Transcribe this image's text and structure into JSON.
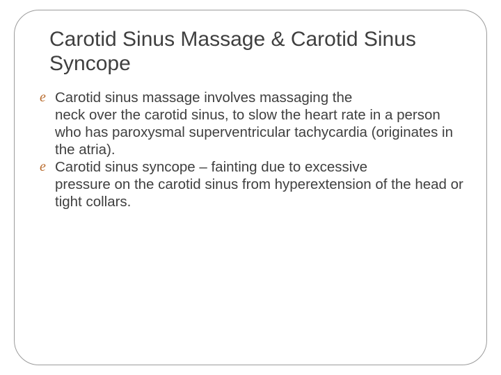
{
  "slide": {
    "title": "Carotid Sinus Massage & Carotid Sinus Syncope",
    "title_color": "#3f3f3f",
    "title_fontsize": 30,
    "bullets": [
      {
        "first_line": "Carotid sinus massage involves massaging the",
        "rest": "neck over the carotid sinus, to slow the heart rate in a person who has paroxysmal superventricular tachycardia (originates in the atria)."
      },
      {
        "first_line": "Carotid sinus syncope – fainting due to excessive",
        "rest": "pressure on the carotid sinus from hyperextension of the head or tight collars."
      }
    ],
    "bullet_glyph": "e",
    "bullet_glyph_color": "#b96b2d",
    "body_text_color": "#3f3f3f",
    "body_fontsize": 20.5,
    "frame": {
      "border_color": "#9b9b9b",
      "border_radius": 36,
      "background_color": "#ffffff"
    }
  }
}
